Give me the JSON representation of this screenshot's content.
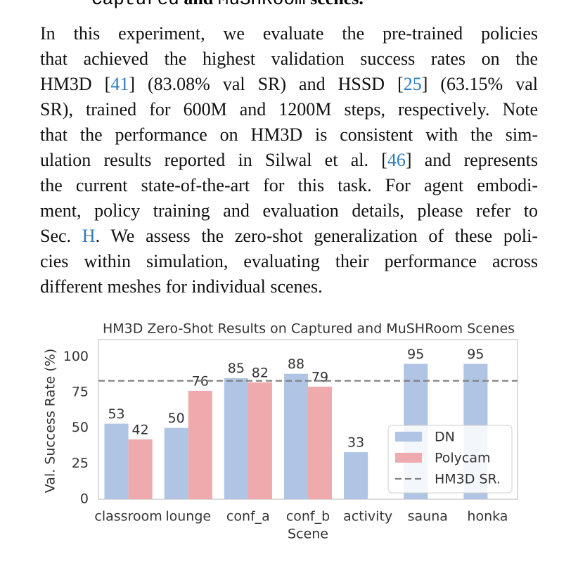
{
  "heading": [
    "Captured",
    " and ",
    "MuSHRoom",
    " scenes."
  ],
  "paragraph_lines": [
    [
      "In this experiment, we evaluate the pre-trained policies"
    ],
    [
      "that achieved the highest validation success rates on the"
    ],
    [
      "HM3D [",
      "41",
      "] (83.08% val SR) and HSSD [",
      "25",
      "] (63.15% val"
    ],
    [
      "SR), trained for 600M and 1200M steps, respectively. Note"
    ],
    [
      "that the performance on HM3D is consistent with the sim-"
    ],
    [
      "ulation results reported in Silwal et al. [",
      "46",
      "] and represents"
    ],
    [
      "the current state-of-the-art for this task. For agent embodi-"
    ],
    [
      "ment, policy training and evaluation details, please refer to"
    ],
    [
      "Sec. ",
      "H",
      ". We assess the zero-shot generalization of these poli-"
    ],
    [
      "cies within simulation, evaluating their performance across"
    ],
    [
      "different meshes for individual scenes."
    ]
  ],
  "chart_data": {
    "type": "bar",
    "title": "HM3D Zero-Shot Results on Captured and MuSHRoom Scenes",
    "x_label": "Scene",
    "y_label": "Val. Success Rate (%)",
    "categories": [
      "classroom",
      "lounge",
      "conf_a",
      "conf_b",
      "activity",
      "sauna",
      "honka"
    ],
    "series": [
      {
        "name": "DN",
        "color": "#b0c4e4",
        "values": [
          53,
          50,
          85,
          88,
          33,
          95,
          95
        ]
      },
      {
        "name": "Polycam",
        "color": "#eeaaac",
        "values": [
          42,
          76,
          82,
          79,
          null,
          null,
          null
        ]
      }
    ],
    "hline": {
      "name": "HM3D SR.",
      "value": 83.08,
      "color": "#808080"
    },
    "ylim": [
      0,
      112
    ],
    "yticks": [
      0,
      25,
      50,
      75,
      100
    ],
    "grid": false,
    "legend": "lower right"
  }
}
